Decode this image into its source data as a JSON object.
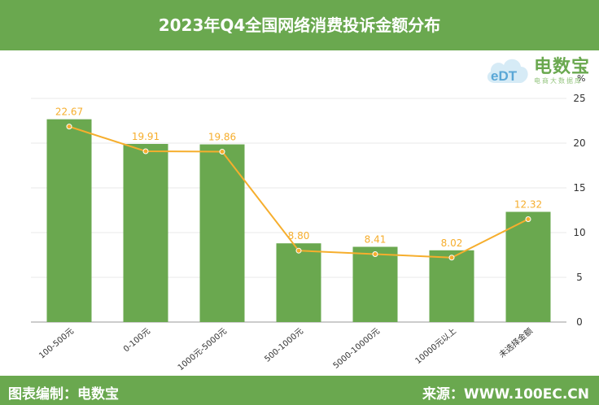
{
  "header": {
    "title": "2023年Q4全国网络消费投诉金额分布"
  },
  "footer": {
    "editor": "图表编制：电数宝",
    "source": "来源：WWW.100EC.CN"
  },
  "logo": {
    "name": "电数宝",
    "tagline": "电商大数据库",
    "icon": "cloud-logo-icon"
  },
  "chart_data": {
    "type": "bar",
    "categories": [
      "100-500元",
      "0-100元",
      "1000元-5000元",
      "500-1000元",
      "5000-10000元",
      "10000元以上",
      "未选择金额"
    ],
    "values": [
      22.67,
      19.91,
      19.86,
      8.8,
      8.41,
      8.02,
      12.32
    ],
    "data_labels": [
      "22.67",
      "19.91",
      "19.86",
      "8.80",
      "8.41",
      "8.02",
      "12.32"
    ],
    "overlay_line": true,
    "y_unit": "%",
    "ylim": [
      0,
      25
    ],
    "yticks": [
      "0",
      "5",
      "10",
      "15",
      "20",
      "25"
    ],
    "y_axis_side": "right",
    "grid": true,
    "colors": {
      "bar": "#6aa84f",
      "line": "#f6ae2d",
      "label": "#f6ae2d",
      "grid": "#e8e8e8"
    }
  }
}
